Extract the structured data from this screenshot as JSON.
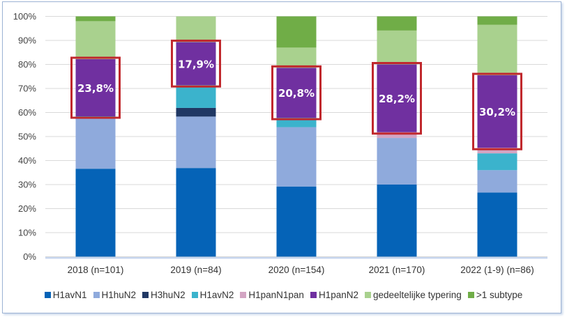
{
  "chart_data": {
    "type": "bar",
    "stacked": true,
    "percent": true,
    "categories": [
      "2018 (n=101)",
      "2019 (n=84)",
      "2020 (n=154)",
      "2021 (n=170)",
      "2022 (1-9) (n=86)"
    ],
    "series": [
      {
        "name": "H1avN1",
        "color": "#0563B7",
        "values": [
          36.6,
          36.9,
          29.2,
          30.0,
          26.7
        ]
      },
      {
        "name": "H1huN2",
        "color": "#8FAADC",
        "values": [
          20.8,
          21.4,
          24.7,
          19.4,
          9.3
        ]
      },
      {
        "name": "H3huN2",
        "color": "#203864",
        "values": [
          0,
          3.6,
          0,
          0,
          0
        ]
      },
      {
        "name": "H1avN2",
        "color": "#3BB3CC",
        "values": [
          1.0,
          9.5,
          3.9,
          0,
          7.0
        ]
      },
      {
        "name": "H1panN1pan",
        "color": "#D3A5C3",
        "values": [
          0,
          0,
          0,
          2.4,
          2.3
        ]
      },
      {
        "name": "H1panN2",
        "color": "#7030A0",
        "values": [
          23.8,
          17.9,
          20.8,
          28.2,
          30.2
        ]
      },
      {
        "name": "gedeeltelijke typering",
        "color": "#A9D18E",
        "values": [
          15.8,
          10.7,
          8.4,
          14.1,
          21.0
        ]
      },
      {
        "name": ">1 subtype",
        "color": "#70AD47",
        "values": [
          2.0,
          0,
          13.0,
          5.9,
          3.5
        ]
      }
    ],
    "data_labels": [
      "23,8%",
      "17,9%",
      "20,8%",
      "28,2%",
      "30,2%"
    ],
    "highlight_series": "H1panN2",
    "highlight_color": "#C0282D",
    "yticks": [
      "0%",
      "10%",
      "20%",
      "30%",
      "40%",
      "50%",
      "60%",
      "70%",
      "80%",
      "90%",
      "100%"
    ],
    "ylim": [
      0,
      100
    ],
    "grid": true,
    "legend_position": "bottom",
    "title": "",
    "xlabel": "",
    "ylabel": ""
  }
}
